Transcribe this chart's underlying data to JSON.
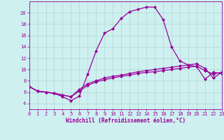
{
  "xlabel": "Windchill (Refroidissement éolien,°C)",
  "background_color": "#cef0f0",
  "line_color": "#990099",
  "x_line1": [
    0,
    1,
    2,
    3,
    4,
    5,
    6,
    7,
    8,
    9,
    10,
    11,
    12,
    13,
    14,
    15,
    16,
    17,
    18,
    19,
    20,
    21,
    22,
    23
  ],
  "y_line1": [
    7.0,
    6.2,
    6.0,
    5.8,
    5.2,
    4.5,
    5.3,
    9.2,
    13.3,
    16.4,
    17.2,
    19.0,
    20.2,
    20.6,
    21.0,
    21.0,
    18.8,
    14.0,
    11.5,
    10.8,
    10.5,
    8.3,
    9.5,
    9.3
  ],
  "x_line2": [
    0,
    1,
    2,
    3,
    4,
    5,
    6,
    7,
    8,
    9,
    10,
    11,
    12,
    13,
    14,
    15,
    16,
    17,
    18,
    19,
    20,
    21,
    22,
    23
  ],
  "y_line2": [
    7.0,
    6.2,
    6.0,
    5.8,
    5.5,
    5.2,
    6.2,
    7.2,
    7.8,
    8.2,
    8.5,
    8.8,
    9.0,
    9.3,
    9.5,
    9.6,
    9.8,
    10.0,
    10.2,
    10.4,
    10.6,
    9.8,
    9.2,
    9.5
  ],
  "x_line3": [
    0,
    1,
    2,
    3,
    4,
    5,
    6,
    7,
    8,
    9,
    10,
    11,
    12,
    13,
    14,
    15,
    16,
    17,
    18,
    19,
    20,
    21,
    22,
    23
  ],
  "y_line3": [
    7.0,
    6.2,
    6.0,
    5.8,
    5.5,
    5.2,
    6.5,
    7.5,
    8.0,
    8.5,
    8.8,
    9.0,
    9.3,
    9.6,
    9.8,
    10.0,
    10.2,
    10.4,
    10.6,
    10.8,
    11.0,
    10.2,
    8.5,
    9.5
  ],
  "ylim_min": 3,
  "ylim_max": 22,
  "xlim_min": 0,
  "xlim_max": 23,
  "yticks": [
    4,
    6,
    8,
    10,
    12,
    14,
    16,
    18,
    20
  ],
  "xticks": [
    0,
    1,
    2,
    3,
    4,
    5,
    6,
    7,
    8,
    9,
    10,
    11,
    12,
    13,
    14,
    15,
    16,
    17,
    18,
    19,
    20,
    21,
    22,
    23
  ],
  "grid_color": "#b0d8d0",
  "marker": "D",
  "markersize": 2.0,
  "linewidth": 0.9,
  "tick_fontsize": 5.0,
  "xlabel_fontsize": 5.5
}
